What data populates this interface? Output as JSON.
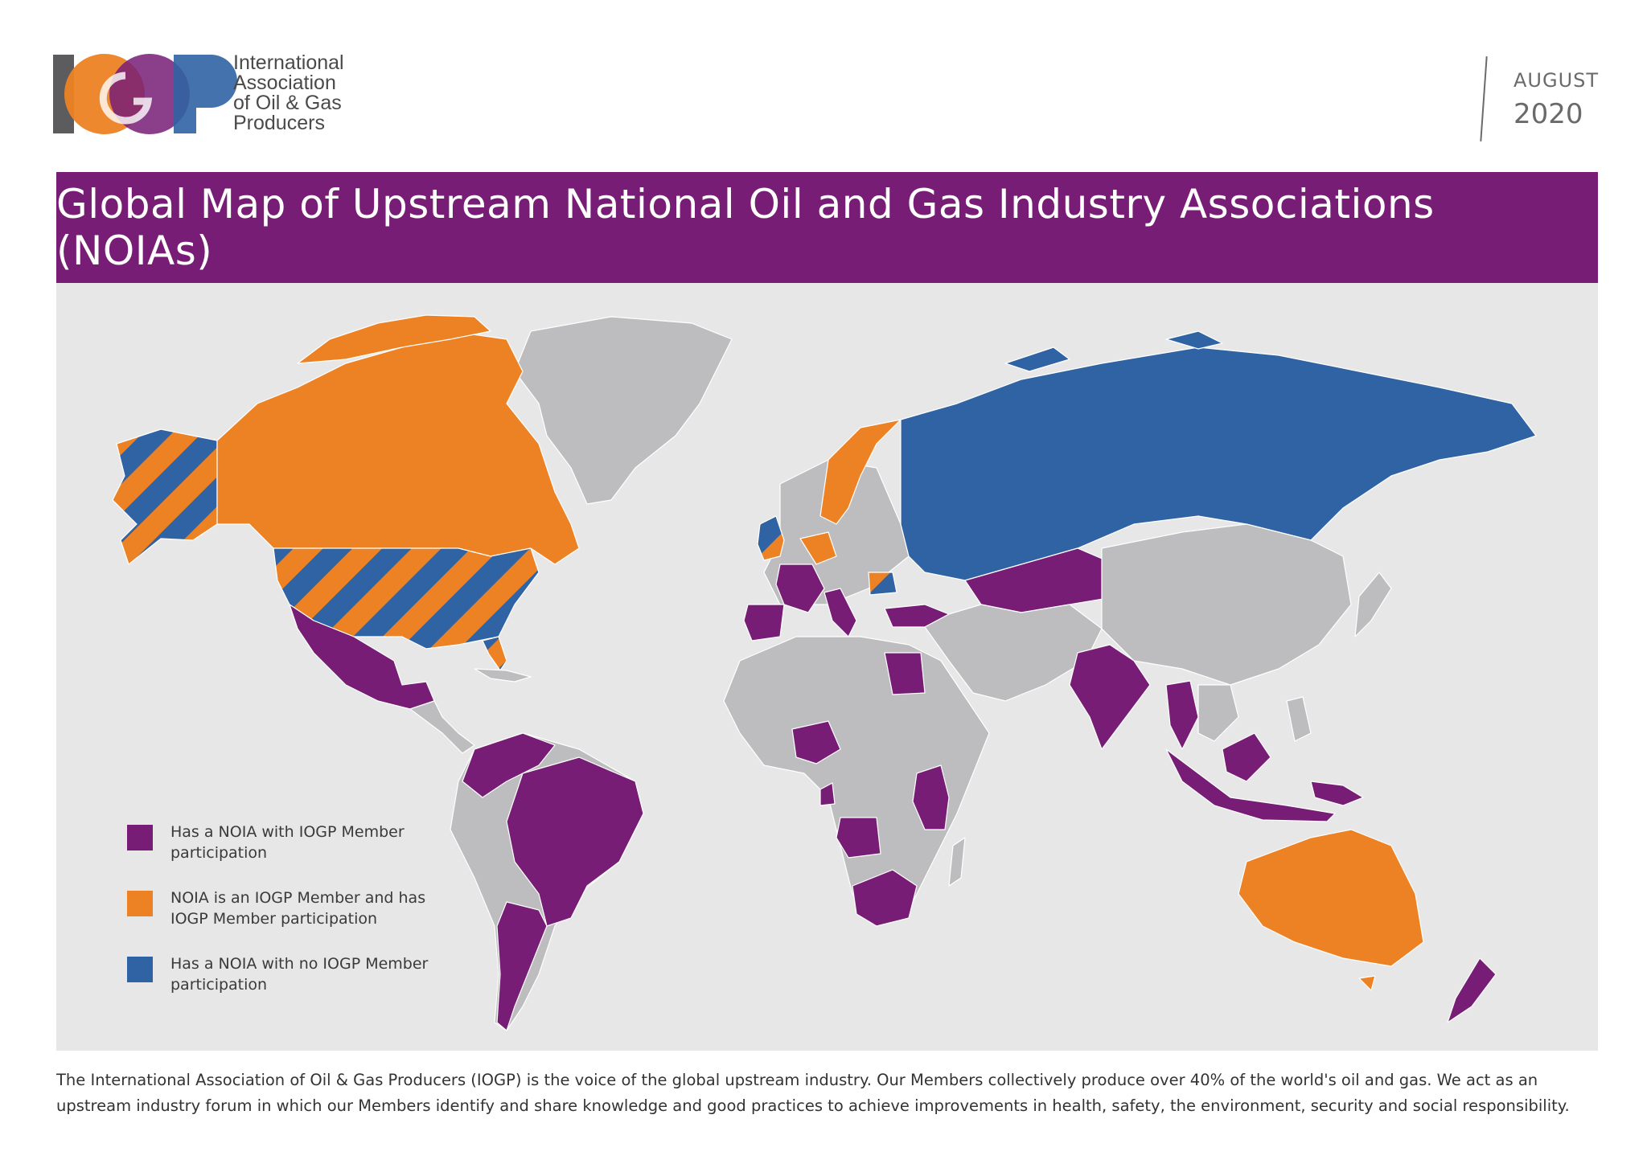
{
  "logo": {
    "letters": "IOGP",
    "name_lines": [
      "International",
      "Association",
      "of Oil & Gas",
      "Producers"
    ]
  },
  "date": {
    "month": "AUGUST",
    "year": "2020"
  },
  "title": "Global Map of Upstream National Oil and Gas Industry Associations (NOIAs)",
  "colors": {
    "purple": "#771d75",
    "orange": "#ed8224",
    "blue": "#3063a3",
    "gray": "#bdbdbf",
    "ocean": "#e7e7e8"
  },
  "legend": [
    {
      "label": "Has a NOIA with IOGP Member participation",
      "color": "#771d75"
    },
    {
      "label": "NOIA is an IOGP Member and has IOGP Member participation",
      "color": "#ed8224"
    },
    {
      "label": "Has a NOIA with no IOGP Member participation",
      "color": "#3063a3"
    }
  ],
  "footer": "The International Association of Oil & Gas Producers (IOGP) is the voice of the global upstream industry. Our Members collectively produce over 40% of the world's oil and gas. We act as an upstream industry forum in which our Members identify and share knowledge and good practices to achieve improvements in health, safety, the environment, security and social responsibility."
}
